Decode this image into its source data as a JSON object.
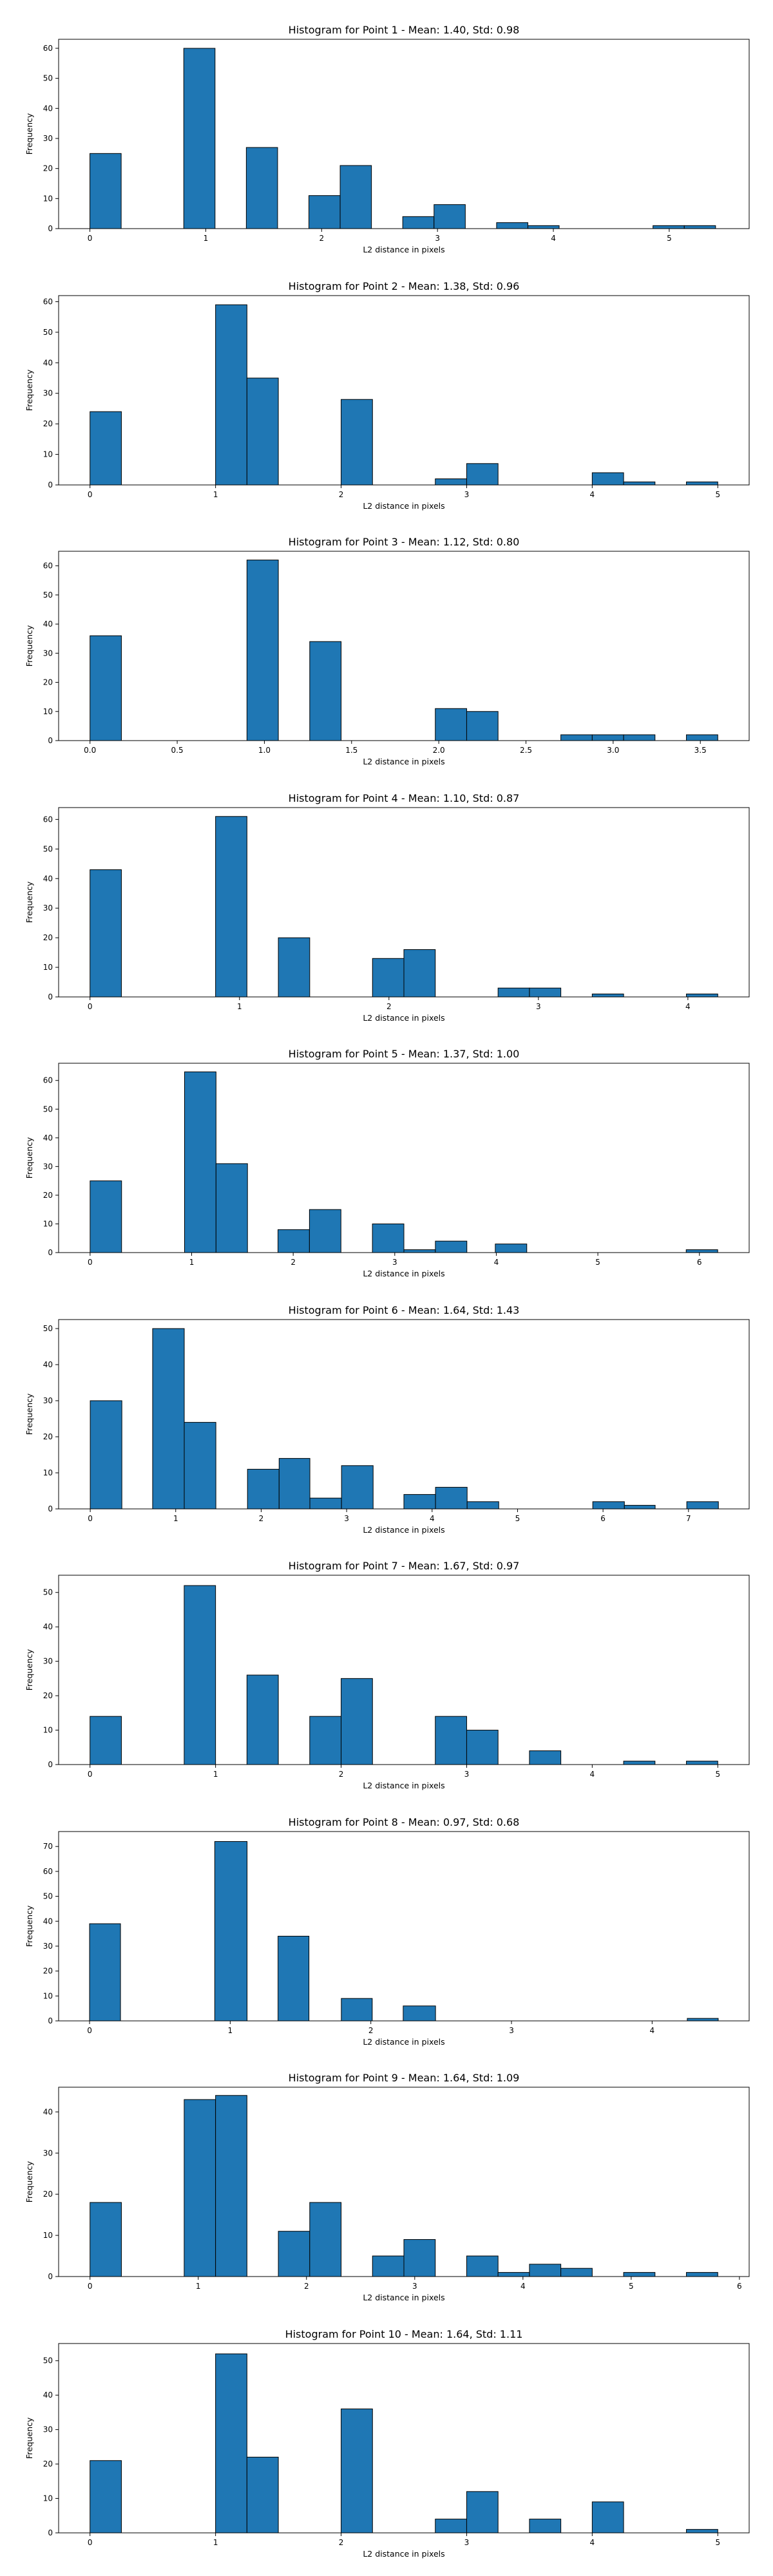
{
  "chart_data": [
    {
      "type": "bar",
      "title": "Histogram for Point 1 - Mean: 1.40, Std: 0.98",
      "xlabel": "L2 distance in pixels",
      "ylabel": "Frequency",
      "xlim": [
        -0.27,
        5.69
      ],
      "ylim": [
        0,
        63
      ],
      "xticks": [
        0,
        1,
        2,
        3,
        4,
        5
      ],
      "yticks": [
        0,
        10,
        20,
        30,
        40,
        50,
        60
      ],
      "color": "#1f77b4",
      "edgecolor": "#000000",
      "bars": [
        {
          "x0": 0.0,
          "x1": 0.27,
          "value": 25
        },
        {
          "x0": 0.81,
          "x1": 1.08,
          "value": 60
        },
        {
          "x0": 1.35,
          "x1": 1.62,
          "value": 27
        },
        {
          "x0": 1.89,
          "x1": 2.16,
          "value": 11
        },
        {
          "x0": 2.16,
          "x1": 2.43,
          "value": 21
        },
        {
          "x0": 2.7,
          "x1": 2.97,
          "value": 4
        },
        {
          "x0": 2.97,
          "x1": 3.24,
          "value": 8
        },
        {
          "x0": 3.51,
          "x1": 3.78,
          "value": 2
        },
        {
          "x0": 3.78,
          "x1": 4.05,
          "value": 1
        },
        {
          "x0": 4.86,
          "x1": 5.13,
          "value": 1
        },
        {
          "x0": 5.13,
          "x1": 5.4,
          "value": 1
        }
      ]
    },
    {
      "type": "bar",
      "title": "Histogram for Point 2 - Mean: 1.38, Std: 0.96",
      "xlabel": "L2 distance in pixels",
      "ylabel": "Frequency",
      "xlim": [
        -0.25,
        5.25
      ],
      "ylim": [
        0,
        62
      ],
      "xticks": [
        0,
        1,
        2,
        3,
        4,
        5
      ],
      "yticks": [
        0,
        10,
        20,
        30,
        40,
        50,
        60
      ],
      "color": "#1f77b4",
      "edgecolor": "#000000",
      "bars": [
        {
          "x0": 0.0,
          "x1": 0.25,
          "value": 24
        },
        {
          "x0": 1.0,
          "x1": 1.25,
          "value": 59
        },
        {
          "x0": 1.25,
          "x1": 1.5,
          "value": 35
        },
        {
          "x0": 2.0,
          "x1": 2.25,
          "value": 28
        },
        {
          "x0": 2.75,
          "x1": 3.0,
          "value": 2
        },
        {
          "x0": 3.0,
          "x1": 3.25,
          "value": 7
        },
        {
          "x0": 4.0,
          "x1": 4.25,
          "value": 4
        },
        {
          "x0": 4.25,
          "x1": 4.5,
          "value": 1
        },
        {
          "x0": 4.75,
          "x1": 5.0,
          "value": 1
        }
      ]
    },
    {
      "type": "bar",
      "title": "Histogram for Point 3 - Mean: 1.12, Std: 0.80",
      "xlabel": "L2 distance in pixels",
      "ylabel": "Frequency",
      "xlim": [
        -0.18,
        3.78
      ],
      "ylim": [
        0,
        65
      ],
      "xticks": [
        0.0,
        0.5,
        1.0,
        1.5,
        2.0,
        2.5,
        3.0,
        3.5
      ],
      "xtick_labels": [
        "0.0",
        "0.5",
        "1.0",
        "1.5",
        "2.0",
        "2.5",
        "3.0",
        "3.5"
      ],
      "yticks": [
        0,
        10,
        20,
        30,
        40,
        50,
        60
      ],
      "color": "#1f77b4",
      "edgecolor": "#000000",
      "bars": [
        {
          "x0": 0.0,
          "x1": 0.18,
          "value": 36
        },
        {
          "x0": 0.9,
          "x1": 1.08,
          "value": 62
        },
        {
          "x0": 1.26,
          "x1": 1.44,
          "value": 34
        },
        {
          "x0": 1.98,
          "x1": 2.16,
          "value": 11
        },
        {
          "x0": 2.16,
          "x1": 2.34,
          "value": 10
        },
        {
          "x0": 2.7,
          "x1": 2.88,
          "value": 2
        },
        {
          "x0": 2.88,
          "x1": 3.06,
          "value": 2
        },
        {
          "x0": 3.06,
          "x1": 3.24,
          "value": 2
        },
        {
          "x0": 3.42,
          "x1": 3.6,
          "value": 2
        }
      ]
    },
    {
      "type": "bar",
      "title": "Histogram for Point 4 - Mean: 1.10, Std: 0.87",
      "xlabel": "L2 distance in pixels",
      "ylabel": "Frequency",
      "xlim": [
        -0.21,
        4.41
      ],
      "ylim": [
        0,
        64
      ],
      "xticks": [
        0,
        1,
        2,
        3,
        4
      ],
      "yticks": [
        0,
        10,
        20,
        30,
        40,
        50,
        60
      ],
      "color": "#1f77b4",
      "edgecolor": "#000000",
      "bars": [
        {
          "x0": 0.0,
          "x1": 0.21,
          "value": 43
        },
        {
          "x0": 0.84,
          "x1": 1.05,
          "value": 61
        },
        {
          "x0": 1.26,
          "x1": 1.47,
          "value": 20
        },
        {
          "x0": 1.89,
          "x1": 2.1,
          "value": 13
        },
        {
          "x0": 2.1,
          "x1": 2.31,
          "value": 16
        },
        {
          "x0": 2.73,
          "x1": 2.94,
          "value": 3
        },
        {
          "x0": 2.94,
          "x1": 3.15,
          "value": 3
        },
        {
          "x0": 3.36,
          "x1": 3.57,
          "value": 1
        },
        {
          "x0": 3.99,
          "x1": 4.2,
          "value": 1
        }
      ]
    },
    {
      "type": "bar",
      "title": "Histogram for Point 5 - Mean: 1.37, Std: 1.00",
      "xlabel": "L2 distance in pixels",
      "ylabel": "Frequency",
      "xlim": [
        -0.31,
        6.49
      ],
      "ylim": [
        0,
        66
      ],
      "xticks": [
        0,
        1,
        2,
        3,
        4,
        5,
        6
      ],
      "yticks": [
        0,
        10,
        20,
        30,
        40,
        50,
        60
      ],
      "color": "#1f77b4",
      "edgecolor": "#000000",
      "bars": [
        {
          "x0": 0.0,
          "x1": 0.31,
          "value": 25
        },
        {
          "x0": 0.93,
          "x1": 1.24,
          "value": 63
        },
        {
          "x0": 1.24,
          "x1": 1.55,
          "value": 31
        },
        {
          "x0": 1.85,
          "x1": 2.16,
          "value": 8
        },
        {
          "x0": 2.16,
          "x1": 2.47,
          "value": 15
        },
        {
          "x0": 2.78,
          "x1": 3.09,
          "value": 10
        },
        {
          "x0": 3.09,
          "x1": 3.4,
          "value": 1
        },
        {
          "x0": 3.4,
          "x1": 3.71,
          "value": 4
        },
        {
          "x0": 3.99,
          "x1": 4.3,
          "value": 3
        },
        {
          "x0": 5.87,
          "x1": 6.18,
          "value": 1
        }
      ]
    },
    {
      "type": "bar",
      "title": "Histogram for Point 6 - Mean: 1.64, Std: 1.43",
      "xlabel": "L2 distance in pixels",
      "ylabel": "Frequency",
      "xlim": [
        -0.37,
        7.71
      ],
      "ylim": [
        0,
        52.5
      ],
      "xticks": [
        0,
        1,
        2,
        3,
        4,
        5,
        6,
        7
      ],
      "yticks": [
        0,
        10,
        20,
        30,
        40,
        50
      ],
      "color": "#1f77b4",
      "edgecolor": "#000000",
      "bars": [
        {
          "x0": 0.0,
          "x1": 0.37,
          "value": 30
        },
        {
          "x0": 0.73,
          "x1": 1.1,
          "value": 50
        },
        {
          "x0": 1.1,
          "x1": 1.47,
          "value": 24
        },
        {
          "x0": 1.84,
          "x1": 2.21,
          "value": 11
        },
        {
          "x0": 2.21,
          "x1": 2.57,
          "value": 14
        },
        {
          "x0": 2.57,
          "x1": 2.94,
          "value": 3
        },
        {
          "x0": 2.94,
          "x1": 3.31,
          "value": 12
        },
        {
          "x0": 3.67,
          "x1": 4.04,
          "value": 4
        },
        {
          "x0": 4.04,
          "x1": 4.41,
          "value": 6
        },
        {
          "x0": 4.41,
          "x1": 4.78,
          "value": 2
        },
        {
          "x0": 5.88,
          "x1": 6.25,
          "value": 2
        },
        {
          "x0": 6.25,
          "x1": 6.61,
          "value": 1
        },
        {
          "x0": 6.98,
          "x1": 7.35,
          "value": 2
        }
      ]
    },
    {
      "type": "bar",
      "title": "Histogram for Point 7 - Mean: 1.67, Std: 0.97",
      "xlabel": "L2 distance in pixels",
      "ylabel": "Frequency",
      "xlim": [
        -0.25,
        5.25
      ],
      "ylim": [
        0,
        55
      ],
      "xticks": [
        0,
        1,
        2,
        3,
        4,
        5
      ],
      "yticks": [
        0,
        10,
        20,
        30,
        40,
        50
      ],
      "color": "#1f77b4",
      "edgecolor": "#000000",
      "bars": [
        {
          "x0": 0.0,
          "x1": 0.25,
          "value": 14
        },
        {
          "x0": 0.75,
          "x1": 1.0,
          "value": 52
        },
        {
          "x0": 1.25,
          "x1": 1.5,
          "value": 26
        },
        {
          "x0": 1.75,
          "x1": 2.0,
          "value": 14
        },
        {
          "x0": 2.0,
          "x1": 2.25,
          "value": 25
        },
        {
          "x0": 2.75,
          "x1": 3.0,
          "value": 14
        },
        {
          "x0": 3.0,
          "x1": 3.25,
          "value": 10
        },
        {
          "x0": 3.5,
          "x1": 3.75,
          "value": 4
        },
        {
          "x0": 4.25,
          "x1": 4.5,
          "value": 1
        },
        {
          "x0": 4.75,
          "x1": 5.0,
          "value": 1
        }
      ]
    },
    {
      "type": "bar",
      "title": "Histogram for Point 8 - Mean: 0.97, Std: 0.68",
      "xlabel": "L2 distance in pixels",
      "ylabel": "Frequency",
      "xlim": [
        -0.22,
        4.69
      ],
      "ylim": [
        0,
        76
      ],
      "xticks": [
        0,
        1,
        2,
        3,
        4
      ],
      "yticks": [
        0,
        10,
        20,
        30,
        40,
        50,
        60,
        70
      ],
      "color": "#1f77b4",
      "edgecolor": "#000000",
      "bars": [
        {
          "x0": 0.0,
          "x1": 0.22,
          "value": 39
        },
        {
          "x0": 0.89,
          "x1": 1.12,
          "value": 72
        },
        {
          "x0": 1.34,
          "x1": 1.56,
          "value": 34
        },
        {
          "x0": 1.79,
          "x1": 2.01,
          "value": 9
        },
        {
          "x0": 2.23,
          "x1": 2.46,
          "value": 6
        },
        {
          "x0": 4.25,
          "x1": 4.47,
          "value": 1
        }
      ]
    },
    {
      "type": "bar",
      "title": "Histogram for Point 9 - Mean: 1.64, Std: 1.09",
      "xlabel": "L2 distance in pixels",
      "ylabel": "Frequency",
      "xlim": [
        -0.29,
        6.09
      ],
      "ylim": [
        0,
        46
      ],
      "xticks": [
        0,
        1,
        2,
        3,
        4,
        5,
        6
      ],
      "yticks": [
        0,
        10,
        20,
        30,
        40
      ],
      "color": "#1f77b4",
      "edgecolor": "#000000",
      "bars": [
        {
          "x0": 0.0,
          "x1": 0.29,
          "value": 18
        },
        {
          "x0": 0.87,
          "x1": 1.16,
          "value": 43
        },
        {
          "x0": 1.16,
          "x1": 1.45,
          "value": 44
        },
        {
          "x0": 1.74,
          "x1": 2.03,
          "value": 11
        },
        {
          "x0": 2.03,
          "x1": 2.32,
          "value": 18
        },
        {
          "x0": 2.61,
          "x1": 2.9,
          "value": 5
        },
        {
          "x0": 2.9,
          "x1": 3.19,
          "value": 9
        },
        {
          "x0": 3.48,
          "x1": 3.77,
          "value": 5
        },
        {
          "x0": 3.77,
          "x1": 4.06,
          "value": 1
        },
        {
          "x0": 4.06,
          "x1": 4.35,
          "value": 3
        },
        {
          "x0": 4.35,
          "x1": 4.64,
          "value": 2
        },
        {
          "x0": 4.93,
          "x1": 5.22,
          "value": 1
        },
        {
          "x0": 5.51,
          "x1": 5.8,
          "value": 1
        }
      ]
    },
    {
      "type": "bar",
      "title": "Histogram for Point 10 - Mean: 1.64, Std: 1.11",
      "xlabel": "L2 distance in pixels",
      "ylabel": "Frequency",
      "xlim": [
        -0.25,
        5.25
      ],
      "ylim": [
        0,
        55
      ],
      "xticks": [
        0,
        1,
        2,
        3,
        4,
        5
      ],
      "yticks": [
        0,
        10,
        20,
        30,
        40,
        50
      ],
      "color": "#1f77b4",
      "edgecolor": "#000000",
      "bars": [
        {
          "x0": 0.0,
          "x1": 0.25,
          "value": 21
        },
        {
          "x0": 1.0,
          "x1": 1.25,
          "value": 52
        },
        {
          "x0": 1.25,
          "x1": 1.5,
          "value": 22
        },
        {
          "x0": 2.0,
          "x1": 2.25,
          "value": 36
        },
        {
          "x0": 2.75,
          "x1": 3.0,
          "value": 4
        },
        {
          "x0": 3.0,
          "x1": 3.25,
          "value": 12
        },
        {
          "x0": 3.5,
          "x1": 3.75,
          "value": 4
        },
        {
          "x0": 4.0,
          "x1": 4.25,
          "value": 9
        },
        {
          "x0": 4.75,
          "x1": 5.0,
          "value": 1
        }
      ]
    }
  ]
}
